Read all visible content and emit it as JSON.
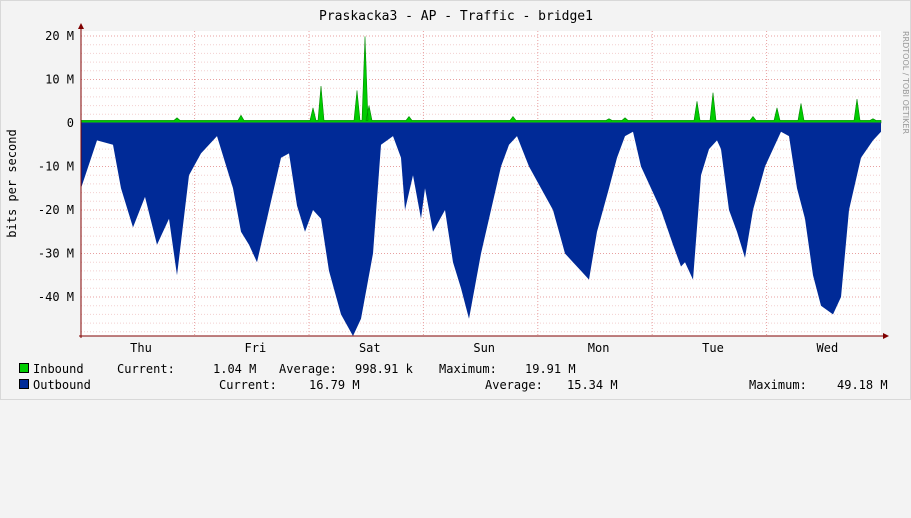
{
  "chart_data": {
    "type": "area",
    "title": "Praskacka3 - AP - Traffic - bridge1",
    "ylabel": "bits per second",
    "watermark": "RRDTOOL / TOBI OETIKER",
    "ylim_mbps": [
      -49.18,
      22
    ],
    "y_ticks": [
      {
        "value": 20,
        "label": "20 M"
      },
      {
        "value": 10,
        "label": "10 M"
      },
      {
        "value": 0,
        "label": "0"
      },
      {
        "value": -10,
        "label": "-10 M"
      },
      {
        "value": -20,
        "label": "-20 M"
      },
      {
        "value": -30,
        "label": "-30 M"
      },
      {
        "value": -40,
        "label": "-40 M"
      }
    ],
    "x_labels": [
      "Thu",
      "Fri",
      "Sat",
      "Sun",
      "Mon",
      "Tue",
      "Wed"
    ],
    "grid": true,
    "colors": {
      "inbound": "#00cc00",
      "inbound_edge": "#008800",
      "outbound": "#002a97",
      "grid": "#e8a0a0",
      "axis": "#800000",
      "zero_line": "#2020a0",
      "background": "#ffffff"
    },
    "series": [
      {
        "name": "Inbound",
        "unit": "Mbps",
        "current": "1.04 M",
        "average": "998.91 k",
        "maximum": "19.91 M",
        "peaks": [
          [
            0.12,
            1.2
          ],
          [
            0.2,
            1.8
          ],
          [
            0.29,
            3.5
          ],
          [
            0.3,
            8.5
          ],
          [
            0.345,
            7.5
          ],
          [
            0.355,
            19.9
          ],
          [
            0.36,
            4.0
          ],
          [
            0.41,
            1.5
          ],
          [
            0.54,
            1.5
          ],
          [
            0.66,
            1.0
          ],
          [
            0.68,
            1.2
          ],
          [
            0.77,
            5.0
          ],
          [
            0.79,
            7.0
          ],
          [
            0.84,
            1.5
          ],
          [
            0.87,
            3.5
          ],
          [
            0.9,
            4.5
          ],
          [
            0.97,
            5.5
          ],
          [
            0.99,
            1.0
          ]
        ]
      },
      {
        "name": "Outbound",
        "unit": "Mbps",
        "current": "16.79 M",
        "average": "15.34 M",
        "maximum": "49.18 M",
        "troughs": [
          [
            0.0,
            -15
          ],
          [
            0.02,
            -4
          ],
          [
            0.04,
            -5
          ],
          [
            0.05,
            -15
          ],
          [
            0.065,
            -24
          ],
          [
            0.08,
            -17
          ],
          [
            0.095,
            -28
          ],
          [
            0.11,
            -22
          ],
          [
            0.12,
            -35
          ],
          [
            0.135,
            -12
          ],
          [
            0.15,
            -7
          ],
          [
            0.17,
            -3
          ],
          [
            0.19,
            -15
          ],
          [
            0.2,
            -25
          ],
          [
            0.21,
            -28
          ],
          [
            0.22,
            -32
          ],
          [
            0.235,
            -20
          ],
          [
            0.25,
            -8
          ],
          [
            0.26,
            -7
          ],
          [
            0.27,
            -19
          ],
          [
            0.28,
            -25
          ],
          [
            0.29,
            -20
          ],
          [
            0.3,
            -22
          ],
          [
            0.31,
            -34
          ],
          [
            0.325,
            -44
          ],
          [
            0.34,
            -49
          ],
          [
            0.35,
            -45
          ],
          [
            0.365,
            -30
          ],
          [
            0.375,
            -5
          ],
          [
            0.39,
            -3
          ],
          [
            0.4,
            -8
          ],
          [
            0.405,
            -20
          ],
          [
            0.415,
            -12
          ],
          [
            0.425,
            -22
          ],
          [
            0.43,
            -15
          ],
          [
            0.44,
            -25
          ],
          [
            0.455,
            -20
          ],
          [
            0.465,
            -32
          ],
          [
            0.475,
            -38
          ],
          [
            0.485,
            -45
          ],
          [
            0.5,
            -30
          ],
          [
            0.51,
            -22
          ],
          [
            0.525,
            -10
          ],
          [
            0.535,
            -5
          ],
          [
            0.545,
            -3
          ],
          [
            0.56,
            -10
          ],
          [
            0.575,
            -15
          ],
          [
            0.59,
            -20
          ],
          [
            0.605,
            -30
          ],
          [
            0.615,
            -32
          ],
          [
            0.625,
            -34
          ],
          [
            0.635,
            -36
          ],
          [
            0.645,
            -25
          ],
          [
            0.66,
            -15
          ],
          [
            0.67,
            -8
          ],
          [
            0.68,
            -3
          ],
          [
            0.69,
            -2
          ],
          [
            0.7,
            -10
          ],
          [
            0.71,
            -14
          ],
          [
            0.725,
            -20
          ],
          [
            0.74,
            -28
          ],
          [
            0.75,
            -33
          ],
          [
            0.755,
            -32
          ],
          [
            0.765,
            -36
          ],
          [
            0.775,
            -12
          ],
          [
            0.785,
            -6
          ],
          [
            0.795,
            -4
          ],
          [
            0.8,
            -6
          ],
          [
            0.81,
            -20
          ],
          [
            0.82,
            -25
          ],
          [
            0.83,
            -31
          ],
          [
            0.84,
            -20
          ],
          [
            0.855,
            -10
          ],
          [
            0.865,
            -6
          ],
          [
            0.875,
            -2
          ],
          [
            0.885,
            -3
          ],
          [
            0.895,
            -15
          ],
          [
            0.905,
            -22
          ],
          [
            0.915,
            -35
          ],
          [
            0.925,
            -42
          ],
          [
            0.94,
            -44
          ],
          [
            0.95,
            -40
          ],
          [
            0.96,
            -20
          ],
          [
            0.975,
            -8
          ],
          [
            0.99,
            -4
          ],
          [
            1.0,
            -2
          ]
        ]
      }
    ]
  },
  "legend": {
    "current_label": "Current:",
    "average_label": "Average:",
    "maximum_label": "Maximum:"
  }
}
